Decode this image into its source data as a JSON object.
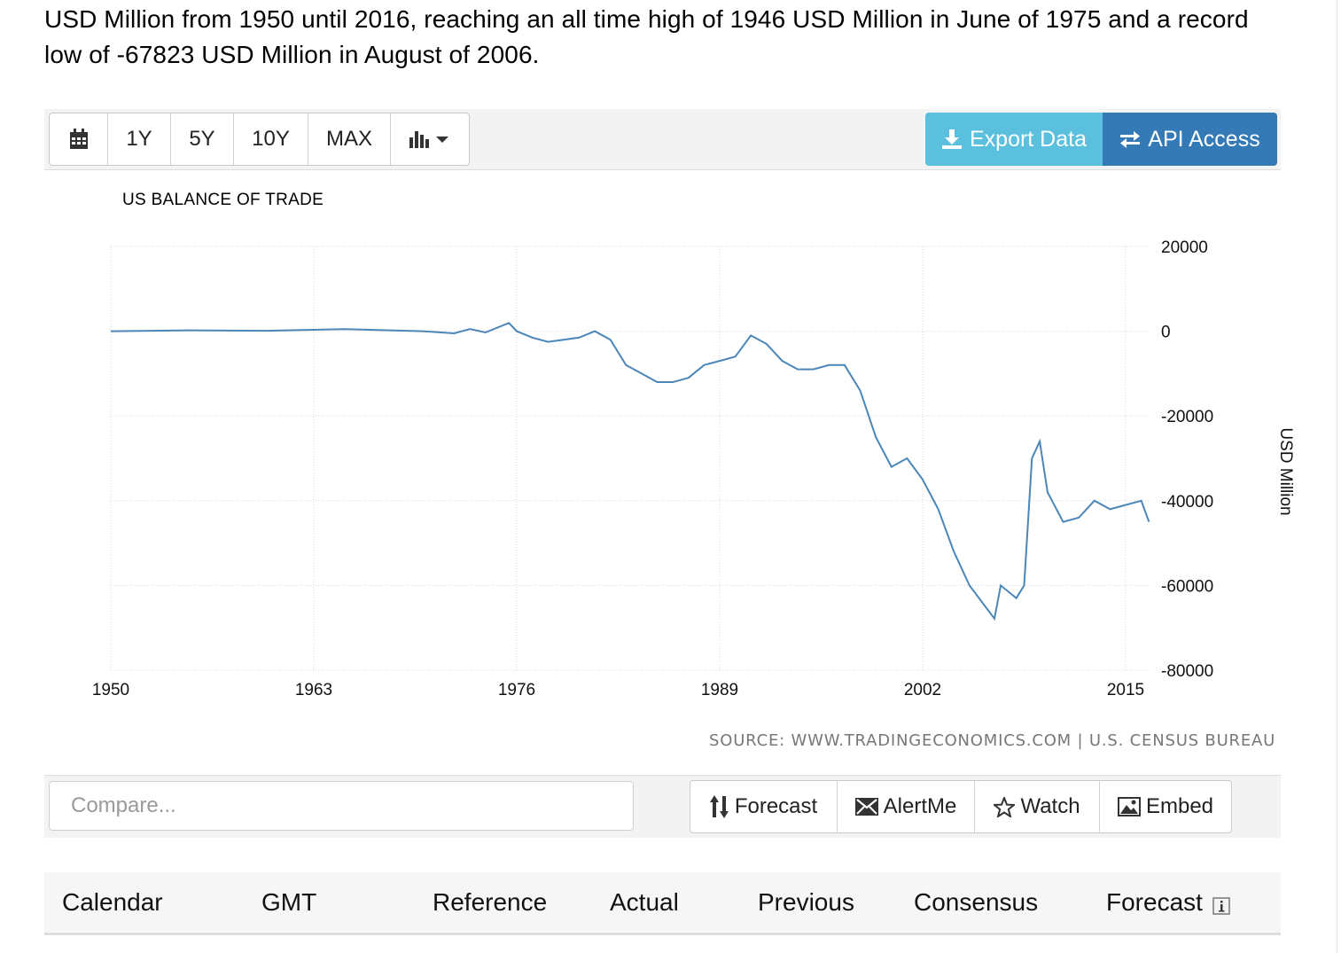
{
  "description": "USD Million from 1950 until 2016, reaching an all time high of 1946 USD Million in June of 1975 and a record low of -67823 USD Million in August of 2006.",
  "toolbar": {
    "range_buttons": [
      "1Y",
      "5Y",
      "10Y",
      "MAX"
    ],
    "calendar_icon": "calendar-icon",
    "chart_type_icon": "bar-chart-icon",
    "export_label": "Export Data",
    "api_label": "API Access",
    "export_color": "#5bc0de",
    "api_color": "#337ab7"
  },
  "chart_data": {
    "type": "line",
    "title": "US BALANCE OF TRADE",
    "ylabel": "USD Million",
    "xlabel": "",
    "x_ticks": [
      "1950",
      "1963",
      "1976",
      "1989",
      "2002",
      "2015"
    ],
    "y_ticks": [
      "20000",
      "0",
      "-20000",
      "-40000",
      "-60000",
      "-80000"
    ],
    "xlim": [
      1950,
      2016.9
    ],
    "ylim": [
      -80000,
      20000
    ],
    "line_color": "#4a86b8",
    "series": [
      {
        "name": "US Balance of Trade",
        "x": [
          1950,
          1955,
          1960,
          1965,
          1970,
          1972,
          1973,
          1974,
          1975.5,
          1976,
          1977,
          1978,
          1979,
          1980,
          1981,
          1982,
          1983,
          1984,
          1985,
          1986,
          1987,
          1988,
          1989,
          1990,
          1991,
          1992,
          1993,
          1994,
          1995,
          1996,
          1997,
          1998,
          1999,
          2000,
          2001,
          2002,
          2003,
          2004,
          2005,
          2006.6,
          2007,
          2008,
          2008.5,
          2009,
          2009.5,
          2010,
          2011,
          2012,
          2013,
          2014,
          2015,
          2016,
          2016.5
        ],
        "values": [
          0,
          200,
          100,
          500,
          0,
          -500,
          500,
          -300,
          1946,
          0,
          -1500,
          -2500,
          -2000,
          -1500,
          0,
          -2000,
          -8000,
          -10000,
          -12000,
          -12000,
          -11000,
          -8000,
          -7000,
          -6000,
          -1000,
          -3000,
          -7000,
          -9000,
          -9000,
          -8000,
          -8000,
          -14000,
          -25000,
          -32000,
          -30000,
          -35000,
          -42000,
          -52000,
          -60000,
          -67823,
          -60000,
          -63000,
          -60000,
          -30000,
          -26000,
          -38000,
          -45000,
          -44000,
          -40000,
          -42000,
          -41000,
          -40000,
          -45000
        ]
      }
    ]
  },
  "source": "SOURCE: WWW.TRADINGECONOMICS.COM | U.S. CENSUS BUREAU",
  "compare": {
    "placeholder": "Compare..."
  },
  "actions": [
    {
      "label": "Forecast",
      "icon": "sort-arrows-icon"
    },
    {
      "label": "AlertMe",
      "icon": "envelope-icon"
    },
    {
      "label": "Watch",
      "icon": "star-icon"
    },
    {
      "label": "Embed",
      "icon": "image-icon"
    }
  ],
  "calendar_table": {
    "headers": [
      "Calendar",
      "GMT",
      "Reference",
      "Actual",
      "Previous",
      "Consensus",
      "Forecast"
    ],
    "info_icon": "info-icon"
  }
}
